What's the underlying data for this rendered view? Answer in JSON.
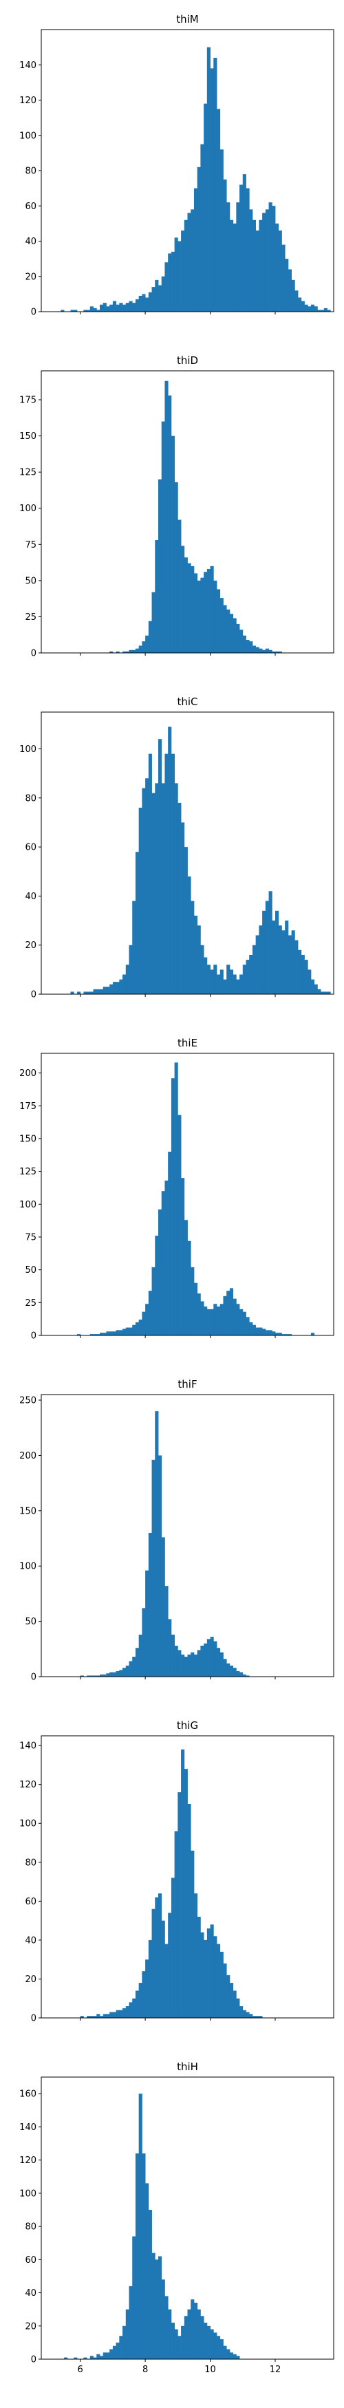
{
  "chart_data": [
    {
      "type": "bar",
      "title": "thiM",
      "xlabel": "",
      "ylabel": "",
      "xlim": [
        4.8,
        13.8
      ],
      "ylim": [
        0,
        160
      ],
      "yticks": [
        0,
        20,
        40,
        60,
        80,
        100,
        120,
        140
      ],
      "xticks": [
        6,
        8,
        10,
        12
      ],
      "xtick_labels_shown": false,
      "color": "#1f77b4",
      "grid": false,
      "x_start": 5.4,
      "bin_width": 0.1,
      "values": [
        1,
        0,
        0,
        1,
        1,
        0,
        0,
        1,
        1,
        3,
        2,
        1,
        4,
        5,
        3,
        4,
        6,
        4,
        5,
        4,
        5,
        6,
        5,
        7,
        9,
        10,
        8,
        11,
        14,
        18,
        15,
        20,
        28,
        33,
        34,
        42,
        40,
        46,
        52,
        56,
        58,
        70,
        82,
        95,
        118,
        150,
        138,
        144,
        115,
        92,
        75,
        62,
        52,
        50,
        62,
        72,
        78,
        70,
        58,
        52,
        46,
        52,
        56,
        58,
        62,
        60,
        50,
        46,
        38,
        30,
        24,
        18,
        12,
        8,
        6,
        4,
        3,
        4,
        3,
        1,
        1,
        2,
        1,
        0,
        0,
        0
      ]
    },
    {
      "type": "bar",
      "title": "thiD",
      "xlabel": "",
      "ylabel": "",
      "xlim": [
        4.8,
        13.8
      ],
      "ylim": [
        0,
        195
      ],
      "yticks": [
        0,
        25,
        50,
        75,
        100,
        125,
        150,
        175
      ],
      "xticks": [
        6,
        8,
        10,
        12
      ],
      "xtick_labels_shown": false,
      "color": "#1f77b4",
      "grid": false,
      "x_start": 6.9,
      "bin_width": 0.1,
      "values": [
        1,
        0,
        1,
        0,
        1,
        1,
        2,
        2,
        3,
        5,
        8,
        12,
        22,
        42,
        78,
        120,
        160,
        188,
        178,
        150,
        118,
        92,
        74,
        66,
        62,
        60,
        55,
        50,
        52,
        56,
        58,
        60,
        50,
        44,
        38,
        33,
        30,
        27,
        24,
        20,
        16,
        12,
        9,
        8,
        5,
        4,
        3,
        2,
        3,
        2,
        1,
        1,
        1,
        0
      ]
    },
    {
      "type": "bar",
      "title": "thiC",
      "xlabel": "",
      "ylabel": "",
      "xlim": [
        4.8,
        13.8
      ],
      "ylim": [
        0,
        115
      ],
      "yticks": [
        0,
        20,
        40,
        60,
        80,
        100
      ],
      "xticks": [
        6,
        8,
        10,
        12
      ],
      "xtick_labels_shown": false,
      "color": "#1f77b4",
      "grid": false,
      "x_start": 5.6,
      "bin_width": 0.1,
      "values": [
        0,
        1,
        0,
        1,
        0,
        1,
        1,
        1,
        2,
        2,
        2,
        3,
        3,
        4,
        5,
        5,
        6,
        8,
        12,
        20,
        38,
        58,
        76,
        84,
        88,
        98,
        82,
        86,
        104,
        86,
        98,
        109,
        98,
        86,
        78,
        70,
        60,
        48,
        38,
        32,
        28,
        20,
        15,
        12,
        10,
        12,
        8,
        10,
        6,
        12,
        10,
        8,
        6,
        8,
        12,
        14,
        16,
        20,
        24,
        28,
        34,
        38,
        42,
        30,
        34,
        28,
        26,
        30,
        24,
        26,
        22,
        18,
        16,
        14,
        10,
        6,
        4,
        2,
        1,
        1,
        1,
        0
      ]
    },
    {
      "type": "bar",
      "title": "thiE",
      "xlabel": "",
      "ylabel": "",
      "xlim": [
        4.8,
        13.8
      ],
      "ylim": [
        0,
        215
      ],
      "yticks": [
        0,
        25,
        50,
        75,
        100,
        125,
        150,
        175,
        200
      ],
      "xticks": [
        6,
        8,
        10,
        12
      ],
      "xtick_labels_shown": false,
      "color": "#1f77b4",
      "grid": false,
      "x_start": 5.7,
      "bin_width": 0.1,
      "values": [
        0,
        0,
        1,
        0,
        0,
        0,
        1,
        1,
        1,
        2,
        2,
        3,
        3,
        3,
        4,
        4,
        5,
        6,
        6,
        8,
        10,
        12,
        18,
        24,
        34,
        52,
        76,
        96,
        110,
        118,
        140,
        196,
        208,
        168,
        120,
        88,
        72,
        52,
        40,
        32,
        26,
        22,
        20,
        20,
        24,
        22,
        24,
        30,
        34,
        36,
        28,
        24,
        20,
        18,
        14,
        10,
        8,
        6,
        6,
        5,
        4,
        4,
        3,
        2,
        2,
        1,
        1,
        1,
        0,
        0,
        0,
        0,
        0,
        0,
        2
      ]
    },
    {
      "type": "bar",
      "title": "thiF",
      "xlabel": "",
      "ylabel": "",
      "xlim": [
        4.8,
        13.8
      ],
      "ylim": [
        0,
        255
      ],
      "yticks": [
        0,
        50,
        100,
        150,
        200,
        250
      ],
      "xticks": [
        6,
        8,
        10,
        12
      ],
      "xtick_labels_shown": false,
      "color": "#1f77b4",
      "grid": false,
      "x_start": 5.8,
      "bin_width": 0.1,
      "values": [
        0,
        0,
        1,
        0,
        1,
        1,
        1,
        1,
        2,
        2,
        3,
        4,
        4,
        5,
        6,
        8,
        10,
        14,
        18,
        26,
        38,
        62,
        96,
        130,
        196,
        240,
        200,
        126,
        82,
        52,
        38,
        28,
        24,
        20,
        18,
        20,
        22,
        20,
        24,
        28,
        30,
        34,
        36,
        32,
        26,
        22,
        16,
        12,
        10,
        8,
        5,
        4,
        2,
        1,
        0,
        0,
        0
      ]
    },
    {
      "type": "bar",
      "title": "thiG",
      "xlabel": "",
      "ylabel": "",
      "xlim": [
        4.8,
        13.8
      ],
      "ylim": [
        0,
        145
      ],
      "yticks": [
        0,
        20,
        40,
        60,
        80,
        100,
        120,
        140
      ],
      "xticks": [
        6,
        8,
        10,
        12
      ],
      "xtick_labels_shown": false,
      "color": "#1f77b4",
      "grid": false,
      "x_start": 5.8,
      "bin_width": 0.1,
      "values": [
        0,
        0,
        1,
        0,
        1,
        1,
        1,
        2,
        1,
        2,
        2,
        3,
        3,
        4,
        4,
        5,
        6,
        8,
        10,
        14,
        18,
        24,
        30,
        40,
        56,
        62,
        64,
        50,
        38,
        54,
        72,
        96,
        116,
        138,
        128,
        110,
        86,
        64,
        52,
        44,
        40,
        46,
        48,
        42,
        38,
        34,
        28,
        22,
        18,
        14,
        10,
        6,
        4,
        3,
        2,
        1,
        1,
        1
      ]
    },
    {
      "type": "bar",
      "title": "thiH",
      "xlabel": "",
      "ylabel": "",
      "xlim": [
        4.8,
        13.8
      ],
      "ylim": [
        0,
        170
      ],
      "yticks": [
        0,
        20,
        40,
        60,
        80,
        100,
        120,
        140,
        160
      ],
      "xticks": [
        6,
        8,
        10,
        12
      ],
      "xtick_labels_shown": true,
      "color": "#1f77b4",
      "grid": false,
      "x_start": 5.3,
      "bin_width": 0.1,
      "values": [
        0,
        0,
        1,
        0,
        0,
        1,
        0,
        0,
        1,
        0,
        2,
        1,
        3,
        2,
        4,
        4,
        6,
        8,
        10,
        14,
        20,
        30,
        44,
        74,
        124,
        160,
        124,
        106,
        90,
        64,
        60,
        62,
        48,
        38,
        30,
        22,
        18,
        14,
        20,
        26,
        30,
        36,
        34,
        30,
        26,
        22,
        20,
        18,
        16,
        14,
        12,
        8,
        6,
        4,
        3,
        2
      ]
    }
  ]
}
